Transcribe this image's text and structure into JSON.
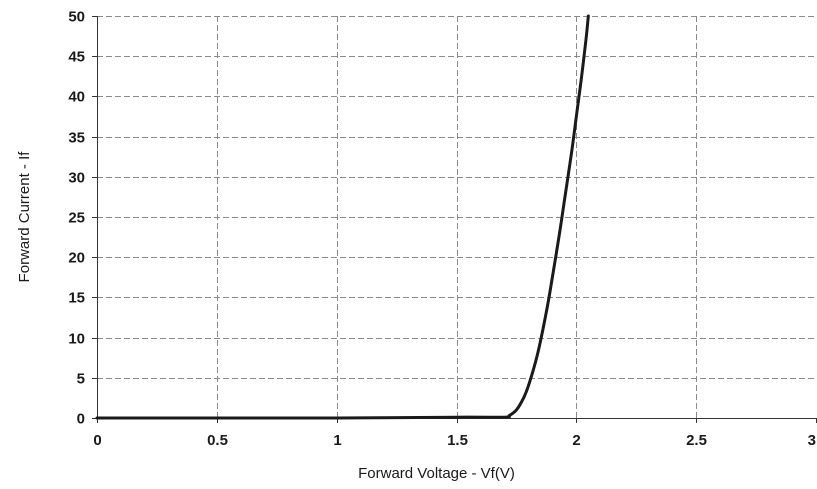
{
  "chart_data": {
    "type": "line",
    "title": "",
    "xlabel": "Forward Voltage - Vf(V)",
    "ylabel": "Forward Current - If",
    "xlim": [
      0,
      3
    ],
    "ylim": [
      0,
      50
    ],
    "x_ticks": [
      "0",
      "0.5",
      "1",
      "1.5",
      "2",
      "2.5",
      "3"
    ],
    "y_ticks": [
      "0",
      "5",
      "10",
      "15",
      "20",
      "25",
      "30",
      "35",
      "40",
      "45",
      "50"
    ],
    "x_tick_values": [
      0,
      0.5,
      1,
      1.5,
      2,
      2.5,
      3
    ],
    "y_tick_values": [
      0,
      5,
      10,
      15,
      20,
      25,
      30,
      35,
      40,
      45,
      50
    ],
    "grid": true,
    "legend": "none",
    "colors": {
      "series": "#1a1a1a",
      "grid": "#8a8a8a",
      "axis": "#333333"
    },
    "series": [
      {
        "x": [
          0,
          0.5,
          1.0,
          1.5,
          1.7,
          1.72,
          1.75,
          1.78,
          1.8,
          1.83,
          1.85,
          1.88,
          1.9,
          1.93,
          1.95,
          1.98,
          2.0,
          2.02,
          2.04,
          2.05
        ],
        "y": [
          0,
          0,
          0,
          0.1,
          0.1,
          0.3,
          1.0,
          2.5,
          4.0,
          7.0,
          9.5,
          14.0,
          17.5,
          23.0,
          27.0,
          33.0,
          37.5,
          42.0,
          47.0,
          50.0
        ]
      }
    ]
  }
}
